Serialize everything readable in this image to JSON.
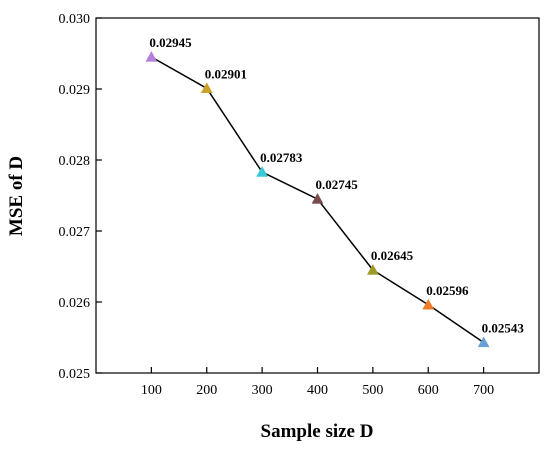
{
  "chart_data": {
    "type": "line",
    "title": "",
    "xlabel": "Sample size D",
    "ylabel": "MSE of D",
    "x": [
      100,
      200,
      300,
      400,
      500,
      600,
      700
    ],
    "x_tick_labels": [
      "100",
      "200",
      "300",
      "400",
      "500",
      "600",
      "700"
    ],
    "xlim": [
      0,
      800
    ],
    "ylim": [
      0.025,
      0.03
    ],
    "y_ticks": [
      0.025,
      0.026,
      0.027,
      0.028,
      0.029,
      0.03
    ],
    "y_tick_labels": [
      "0.025",
      "0.026",
      "0.027",
      "0.028",
      "0.029",
      "0.030"
    ],
    "series": [
      {
        "values": [
          0.02945,
          0.02901,
          0.02783,
          0.02745,
          0.02645,
          0.02596,
          0.02543
        ],
        "data_labels": [
          "0.02945",
          "0.02901",
          "0.02783",
          "0.02745",
          "0.02645",
          "0.02596",
          "0.02543"
        ],
        "line_color": "#000000",
        "marker": "triangle",
        "marker_colors": [
          "#b57fdc",
          "#c9a227",
          "#38c9d6",
          "#7b4a4a",
          "#9e9a2a",
          "#f07a28",
          "#6a9fd4"
        ]
      }
    ],
    "grid": false,
    "legend": "none"
  }
}
